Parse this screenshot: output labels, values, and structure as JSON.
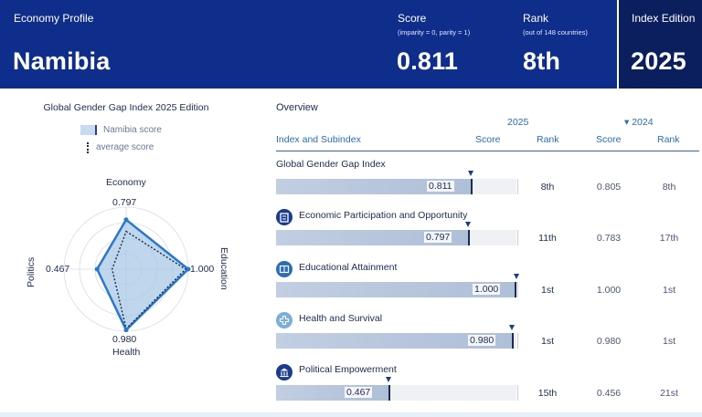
{
  "header": {
    "profile_label": "Economy Profile",
    "country": "Namibia",
    "score_label": "Score",
    "score_sub": "(imparity = 0, parity = 1)",
    "score_value": "0.811",
    "rank_label": "Rank",
    "rank_sub": "(out of 148 countries)",
    "rank_value": "8th",
    "edition_label": "Index Edition",
    "edition_value": "2025"
  },
  "radar": {
    "title": "Global Gender Gap Index 2025 Edition",
    "legend_country": "Namibia score",
    "legend_average": "average score",
    "axes": [
      {
        "name": "Economy",
        "value_label": "0.797",
        "value": 0.797,
        "average": 0.61
      },
      {
        "name": "Education",
        "value_label": "1.000",
        "value": 1.0,
        "average": 0.957
      },
      {
        "name": "Health",
        "value_label": "0.980",
        "value": 0.98,
        "average": 0.961
      },
      {
        "name": "Politics",
        "value_label": "0.467",
        "value": 0.467,
        "average": 0.225
      }
    ],
    "colors": {
      "fill": "#a9c8e6",
      "stroke": "#2a78c8",
      "average": "#1b2a55",
      "grid": "#d6dbe6"
    }
  },
  "table": {
    "overview_label": "Overview",
    "year_current": "2025",
    "year_previous": "▾ 2024",
    "col_index": "Index and Subindex",
    "col_score": "Score",
    "col_rank": "Rank",
    "col_score_prev": "Score",
    "col_rank_prev": "Rank",
    "rows": [
      {
        "name": "Global Gender Gap Index",
        "icon": "none",
        "score": 0.811,
        "score_label": "0.811",
        "rank": "8th",
        "prev_score": "0.805",
        "prev_rank": "8th"
      },
      {
        "name": "Economic Participation and Opportunity",
        "icon": "economy-icon",
        "score": 0.797,
        "score_label": "0.797",
        "rank": "11th",
        "prev_score": "0.783",
        "prev_rank": "17th"
      },
      {
        "name": "Educational Attainment",
        "icon": "education-icon",
        "score": 1.0,
        "score_label": "1.000",
        "rank": "1st",
        "prev_score": "1.000",
        "prev_rank": "1st"
      },
      {
        "name": "Health and Survival",
        "icon": "health-icon",
        "score": 0.98,
        "score_label": "0.980",
        "rank": "1st",
        "prev_score": "0.980",
        "prev_rank": "1st"
      },
      {
        "name": "Political Empowerment",
        "icon": "politics-icon",
        "score": 0.467,
        "score_label": "0.467",
        "rank": "15th",
        "prev_score": "0.456",
        "prev_rank": "21st"
      }
    ],
    "colors": {
      "bar_fill": "#aebfd8",
      "bar_track": "#f0f1f5",
      "accent": "#2b6cb8"
    }
  }
}
